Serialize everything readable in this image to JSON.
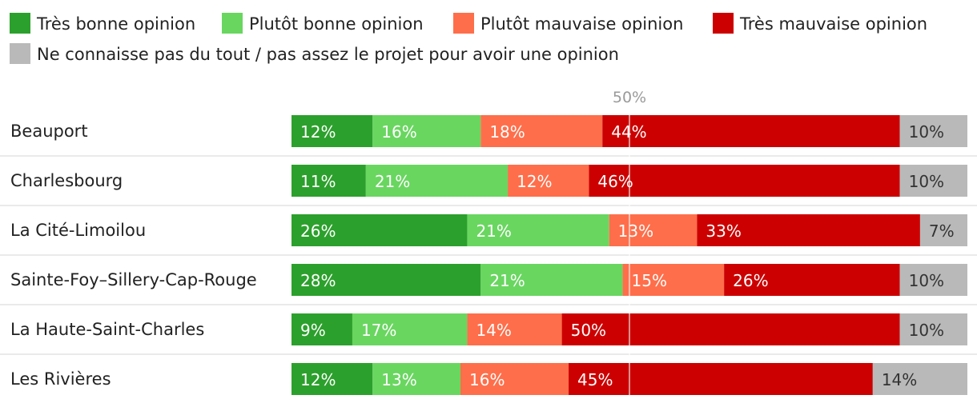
{
  "chart_data": {
    "type": "bar",
    "orientation": "horizontal",
    "stacked": true,
    "title": "",
    "xlabel": "",
    "ylabel": "",
    "xlim": [
      0,
      100
    ],
    "reference_line": {
      "value": 50,
      "label": "50%"
    },
    "categories": [
      "Beauport",
      "Charlesbourg",
      "La Cité-Limoilou",
      "Sainte-Foy–Sillery-Cap-Rouge",
      "La Haute-Saint-Charles",
      "Les Rivières"
    ],
    "series": [
      {
        "name": "Très bonne opinion",
        "color": "#2ca02c",
        "values": [
          12,
          11,
          26,
          28,
          9,
          12
        ]
      },
      {
        "name": "Plutôt bonne opinion",
        "color": "#69d660",
        "values": [
          16,
          21,
          21,
          21,
          17,
          13
        ]
      },
      {
        "name": "Plutôt mauvaise opinion",
        "color": "#ff6e4a",
        "values": [
          18,
          12,
          13,
          15,
          14,
          16
        ]
      },
      {
        "name": "Très mauvaise opinion",
        "color": "#cc0000",
        "values": [
          44,
          46,
          33,
          26,
          50,
          45
        ]
      },
      {
        "name": "Ne connaisse pas du tout / pas assez le projet pour avoir une opinion",
        "color": "#b9b9b9",
        "values": [
          10,
          10,
          7,
          10,
          10,
          14
        ]
      }
    ],
    "value_suffix": "%",
    "legend_position": "top"
  }
}
